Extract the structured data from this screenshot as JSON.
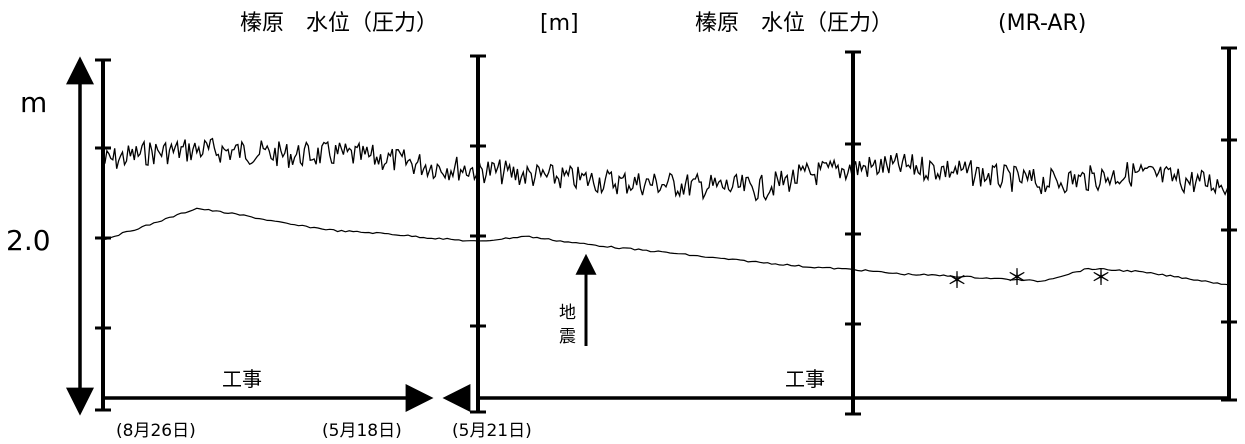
{
  "titles": {
    "left": "榛原　水位（圧力）",
    "unit": "[m]",
    "right": "榛原　水位（圧力）",
    "right_id": "(MR-AR)"
  },
  "annotations": {
    "work_left": "工事",
    "work_right": "工事",
    "earthquake": "地震",
    "step_marker": "＊"
  },
  "chart_data": {
    "type": "line",
    "title": "榛原　水位（圧力）　[m]　榛原　水位（圧力）　(MR-AR)",
    "ylabel": "m",
    "yticks": [
      {
        "label": "2.0",
        "value": 2.0
      }
    ],
    "ylim": [
      0.0,
      5.0
    ],
    "panels": [
      {
        "start": "(8月26日)",
        "end": "(5月18日)"
      },
      {
        "start": "(5月21日)",
        "end": ""
      }
    ],
    "date_labels": [
      "(8月26日)",
      "(5月18日)",
      "(5月21日)"
    ],
    "series": [
      {
        "style": "noisy",
        "values": [
          2.85,
          2.95,
          2.98,
          2.96,
          2.92,
          2.93,
          2.88,
          2.8,
          2.76,
          2.7,
          2.66,
          2.62,
          2.6,
          2.57,
          2.55,
          2.7,
          2.78,
          2.8,
          2.76,
          2.68,
          2.62,
          2.66,
          2.72,
          2.64,
          2.6
        ]
      },
      {
        "style": "smooth",
        "values": [
          1.98,
          2.15,
          2.33,
          2.25,
          2.15,
          2.08,
          2.05,
          2.0,
          1.96,
          2.02,
          1.95,
          1.89,
          1.84,
          1.78,
          1.73,
          1.68,
          1.65,
          1.6,
          1.58,
          1.55,
          1.52,
          1.66,
          1.63,
          1.56,
          1.48
        ]
      }
    ],
    "grid": false,
    "legend": "none"
  }
}
